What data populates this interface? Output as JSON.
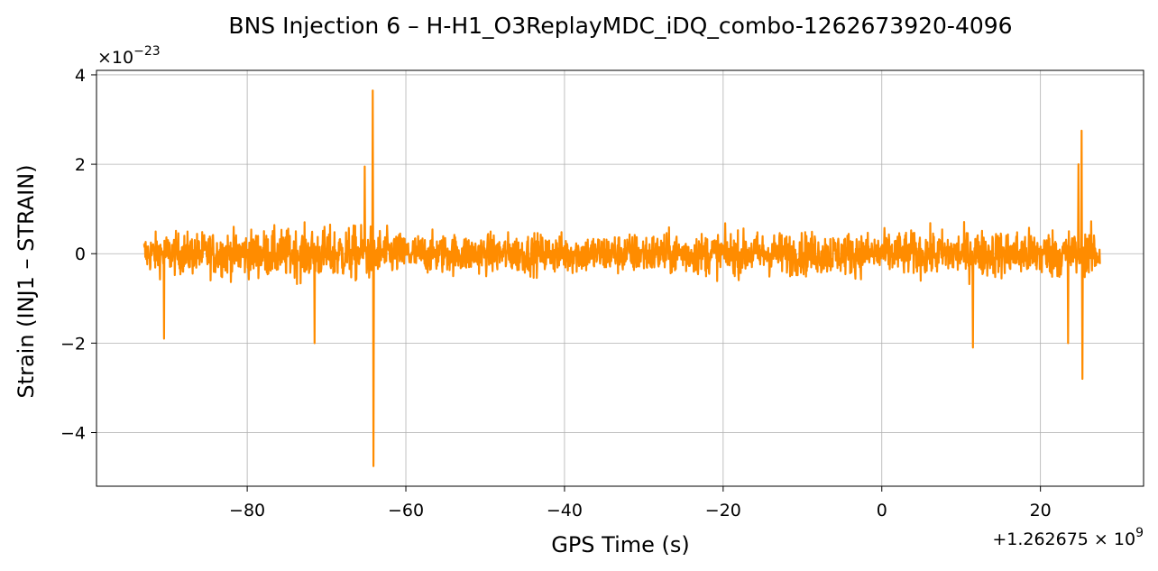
{
  "chart_data": {
    "type": "line",
    "title": "BNS Injection 6 – H-H1_O3ReplayMDC_iDQ_combo-1262673920-4096",
    "xlabel": "GPS Time (s)",
    "ylabel": "Strain (INJ1 – STRAIN)",
    "x_offset_label": "+1.262675 × 10",
    "x_offset_exponent": "9",
    "y_multiplier_label": "×10",
    "y_multiplier_exponent": "−23",
    "xlim": [
      -99,
      33
    ],
    "ylim": [
      -5.2,
      4.1
    ],
    "xticks": [
      -80,
      -60,
      -40,
      -20,
      0,
      20
    ],
    "xtick_labels": [
      "−80",
      "−60",
      "−40",
      "−20",
      "0",
      "20"
    ],
    "yticks": [
      -4,
      -2,
      0,
      2,
      4
    ],
    "ytick_labels": [
      "−4",
      "−2",
      "0",
      "2",
      "4"
    ],
    "grid": true,
    "legend": "none",
    "color": "#ff8c00",
    "series": [
      {
        "x_range": [
          -93,
          27.5
        ],
        "noise_envelope": [
          {
            "x": -92,
            "amp": 1.3
          },
          {
            "x": -80,
            "amp": 1.5
          },
          {
            "x": -70,
            "amp": 1.7
          },
          {
            "x": -65,
            "amp": 1.8
          },
          {
            "x": -60,
            "amp": 1.3
          },
          {
            "x": -40,
            "amp": 1.3
          },
          {
            "x": -20,
            "amp": 1.4
          },
          {
            "x": 0,
            "amp": 1.4
          },
          {
            "x": 20,
            "amp": 1.6
          },
          {
            "x": 27,
            "amp": 1.6
          }
        ],
        "peaks": [
          {
            "x": -64.2,
            "y": 3.65
          },
          {
            "x": -64.1,
            "y": -4.75
          },
          {
            "x": -65.2,
            "y": 1.95
          },
          {
            "x": -71.5,
            "y": -2.0
          },
          {
            "x": -90.5,
            "y": -1.9
          },
          {
            "x": 11.5,
            "y": -2.1
          },
          {
            "x": 25.2,
            "y": 2.75
          },
          {
            "x": 25.3,
            "y": -2.8
          },
          {
            "x": 24.8,
            "y": 2.0
          },
          {
            "x": 23.5,
            "y": -2.0
          }
        ]
      }
    ]
  }
}
